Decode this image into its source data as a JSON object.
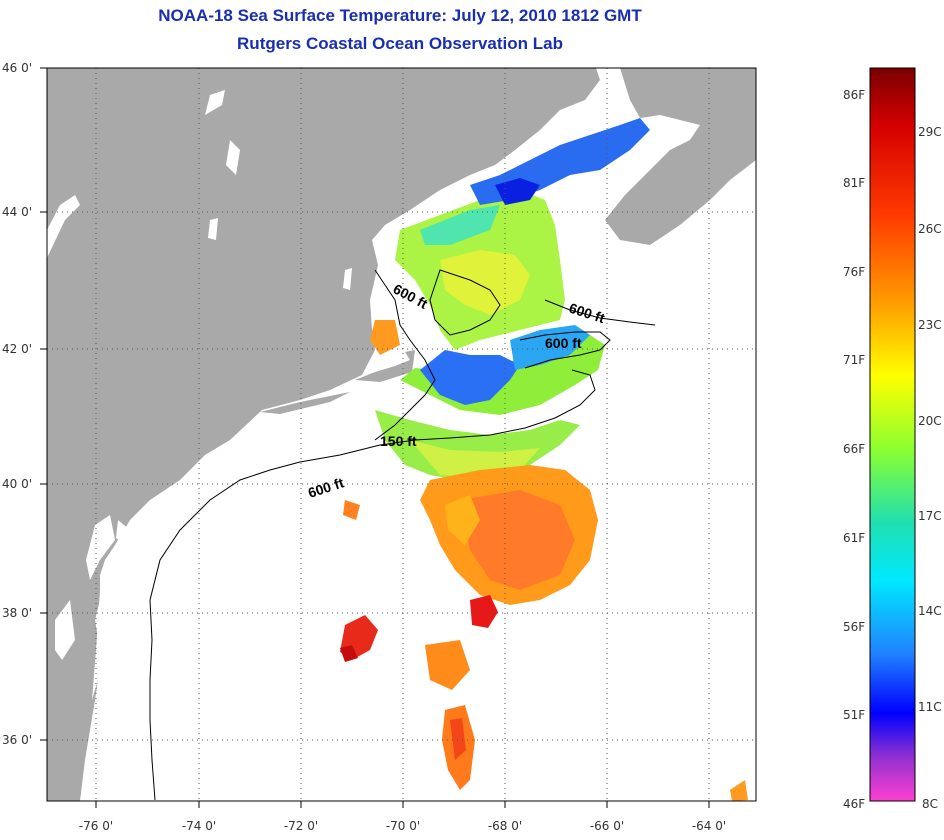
{
  "title": {
    "line1": "NOAA-18 Sea Surface Temperature:  July 12, 2010 1812 GMT",
    "line2": "Rutgers Coastal Ocean Observation Lab"
  },
  "map": {
    "lon_ticks": [
      "-76 0'",
      "-74 0'",
      "-72 0'",
      "-70 0'",
      "-68 0'",
      "-66 0'",
      "-64 0'"
    ],
    "lat_ticks": [
      "46 0'",
      "44 0'",
      "42 0'",
      "40 0'",
      "38 0'",
      "36 0'"
    ],
    "contour_labels": [
      "600 ft",
      "600 ft",
      "600 ft",
      "150 ft",
      "600 ft"
    ]
  },
  "colorbar": {
    "fahrenheit": [
      "86F",
      "81F",
      "76F",
      "71F",
      "66F",
      "61F",
      "56F",
      "51F",
      "46F"
    ],
    "celsius": [
      "29C",
      "26C",
      "23C",
      "20C",
      "17C",
      "14C",
      "11C",
      "8C"
    ]
  },
  "colors": {
    "land": "#a9a9a9",
    "water": "#ffffff",
    "title": "#1a2fb0"
  }
}
